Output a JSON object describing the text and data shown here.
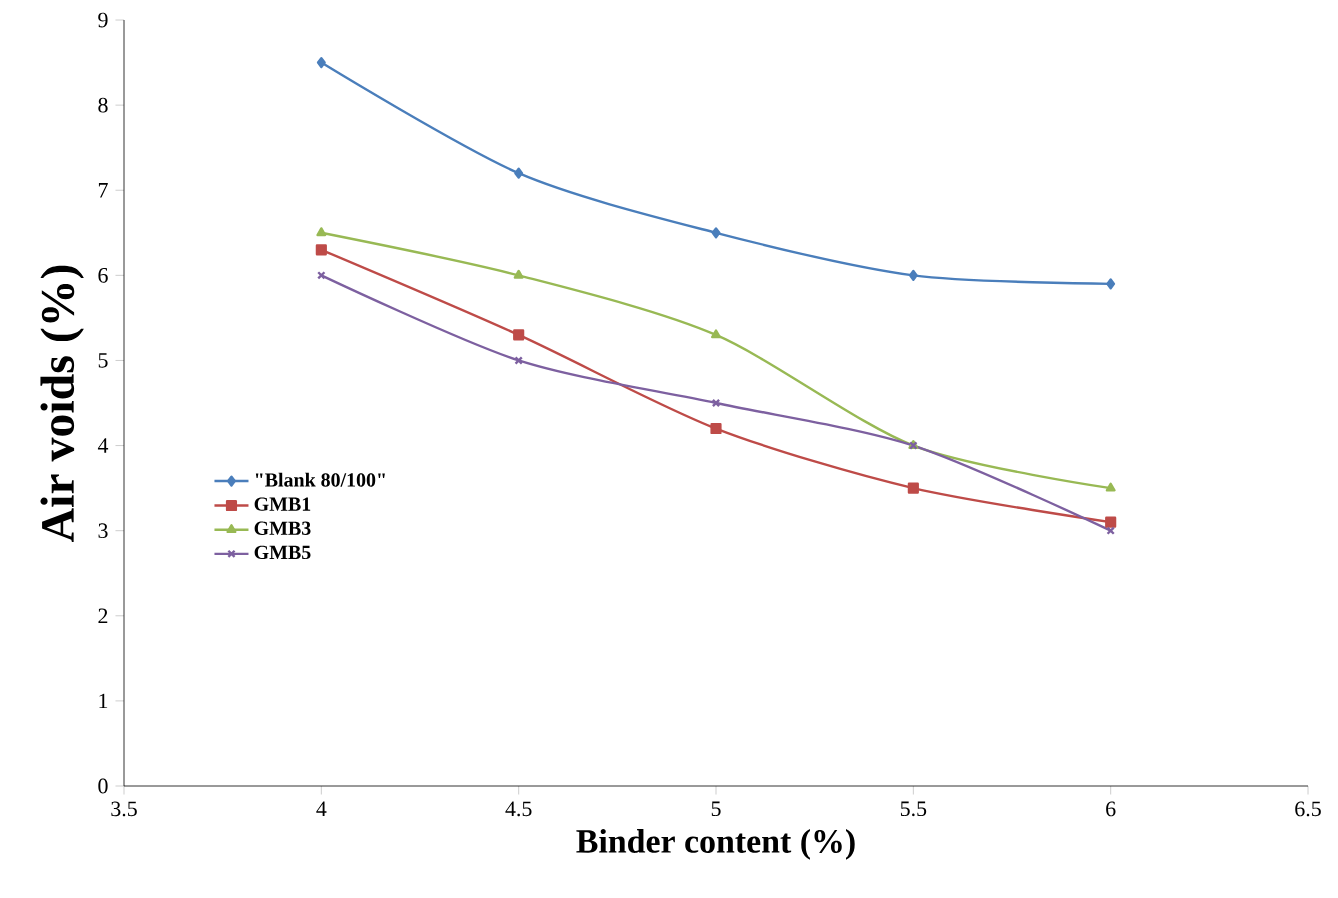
{
  "chart_data": {
    "type": "line",
    "xlabel": "Binder content (%)",
    "ylabel": "Air  voids   (%)",
    "x": [
      4,
      4.5,
      5,
      5.5,
      6
    ],
    "series": [
      {
        "name": "\"Blank 80/100\"",
        "color": "#4a7ebb",
        "marker": "diamond",
        "values": [
          8.5,
          7.2,
          6.5,
          6.0,
          5.9
        ]
      },
      {
        "name": "GMB1",
        "color": "#be4b48",
        "marker": "square",
        "values": [
          6.3,
          5.3,
          4.2,
          3.5,
          3.1
        ]
      },
      {
        "name": "GMB3",
        "color": "#98b954",
        "marker": "triangle",
        "values": [
          6.5,
          6.0,
          5.3,
          4.0,
          3.5
        ]
      },
      {
        "name": "GMB5",
        "color": "#7d60a0",
        "marker": "cross",
        "values": [
          6.0,
          5.0,
          4.5,
          4.0,
          3.0
        ]
      }
    ],
    "xlim": [
      3.5,
      6.5
    ],
    "xticks": [
      3.5,
      4,
      4.5,
      5,
      5.5,
      6,
      6.5
    ],
    "ylim": [
      0,
      9
    ],
    "yticks": [
      0,
      1,
      2,
      3,
      4,
      5,
      6,
      7,
      8,
      9
    ],
    "grid": false,
    "legend": "left"
  }
}
